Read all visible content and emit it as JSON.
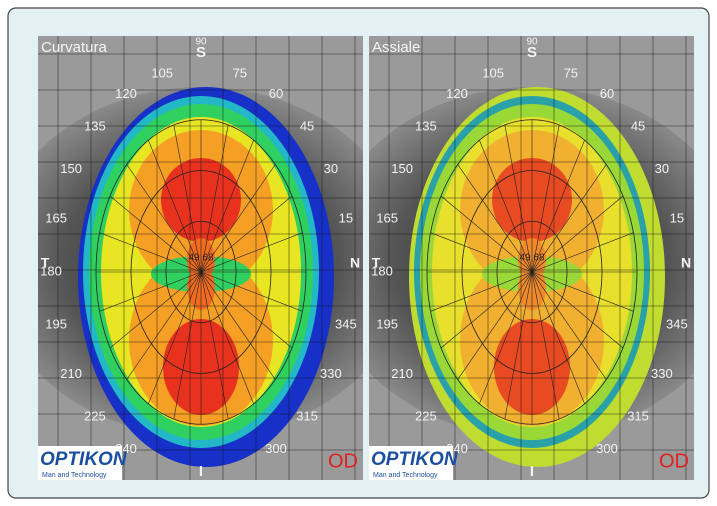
{
  "panels": [
    {
      "title": "Curvatura",
      "center_value": "49.68",
      "eye": "OD",
      "logo": "OPTIKON",
      "tagline": "Man and Technology"
    },
    {
      "title": "Assiale",
      "center_value": "49.68",
      "eye": "OD",
      "logo": "OPTIKON",
      "tagline": "Man and Technology"
    }
  ],
  "angle_labels": [
    105,
    75,
    120,
    60,
    135,
    45,
    150,
    30,
    165,
    15,
    180,
    195,
    345,
    210,
    330,
    225,
    315,
    240,
    300
  ],
  "top_mark": "90",
  "axis_labels": {
    "top": "S",
    "bottom": "I",
    "left": "T",
    "right": "N"
  }
}
